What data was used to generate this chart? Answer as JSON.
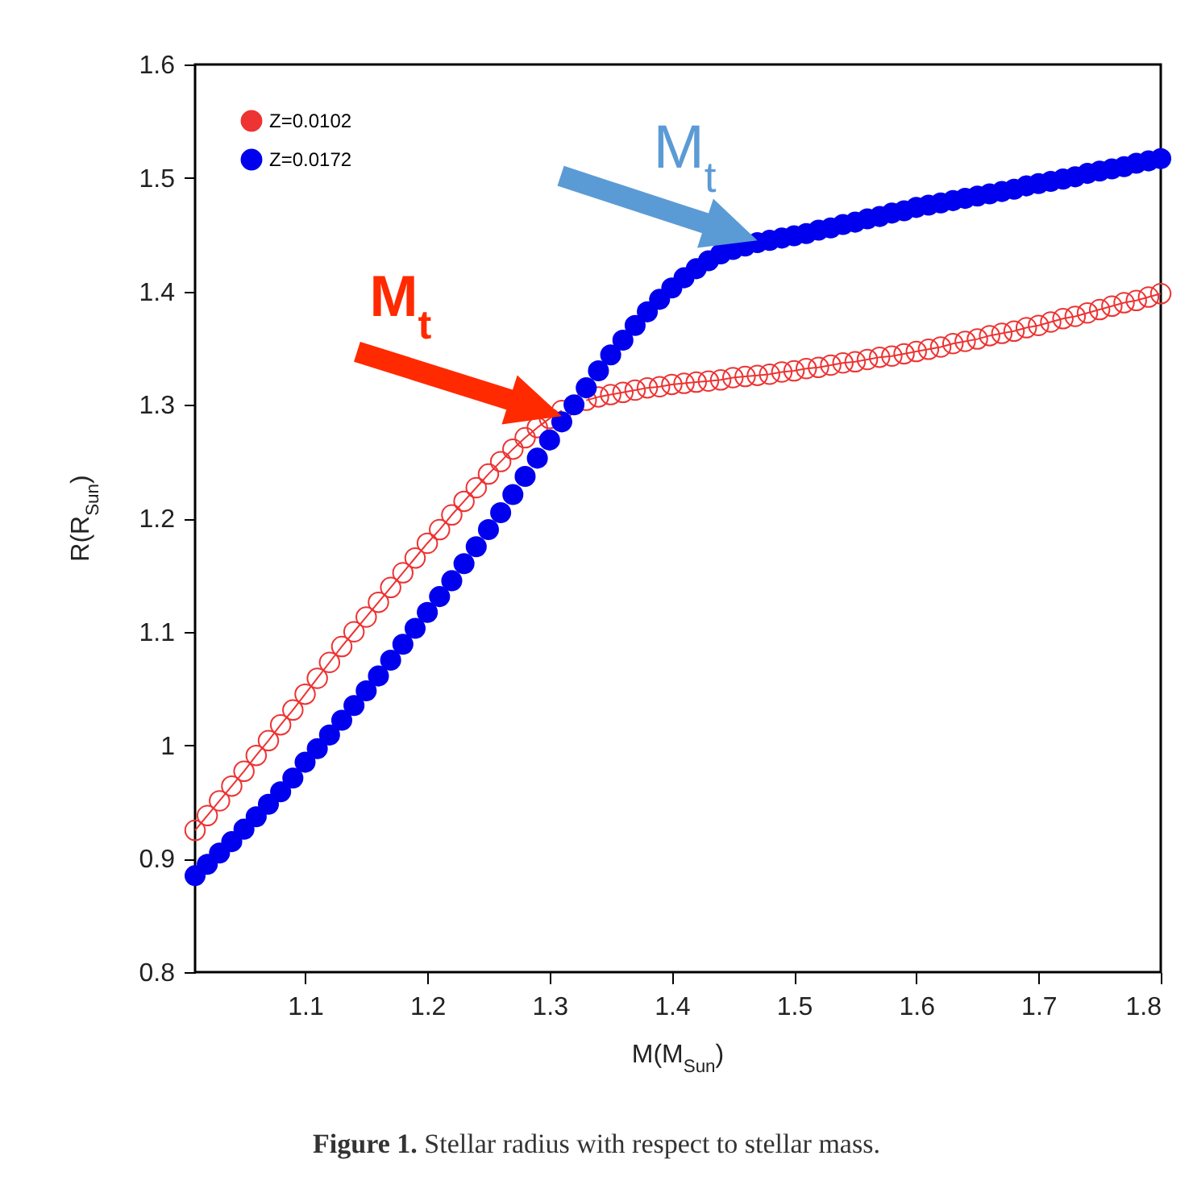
{
  "chart_data": {
    "type": "scatter",
    "xlabel": "M(M$_{Sun}$)",
    "ylabel": "R(R$_{Sun}$)",
    "xlim": [
      1.01,
      1.8
    ],
    "ylim": [
      0.8,
      1.6
    ],
    "xticks": [
      1.1,
      1.2,
      1.3,
      1.4,
      1.5,
      1.6,
      1.7,
      1.8
    ],
    "yticks": [
      0.8,
      0.9,
      1,
      1.1,
      1.2,
      1.3,
      1.4,
      1.5,
      1.6
    ],
    "grid": false,
    "legend": "top left",
    "marker": "circle",
    "x": [
      1.01,
      1.02,
      1.03,
      1.04,
      1.05,
      1.06,
      1.07,
      1.08,
      1.09,
      1.1,
      1.11,
      1.12,
      1.13,
      1.14,
      1.15,
      1.16,
      1.17,
      1.18,
      1.19,
      1.2,
      1.21,
      1.22,
      1.23,
      1.24,
      1.25,
      1.26,
      1.27,
      1.28,
      1.29,
      1.3,
      1.31,
      1.32,
      1.33,
      1.34,
      1.35,
      1.36,
      1.37,
      1.38,
      1.39,
      1.4,
      1.41,
      1.42,
      1.43,
      1.44,
      1.45,
      1.46,
      1.47,
      1.48,
      1.49,
      1.5,
      1.51,
      1.52,
      1.53,
      1.54,
      1.55,
      1.56,
      1.57,
      1.58,
      1.59,
      1.6,
      1.61,
      1.62,
      1.63,
      1.64,
      1.65,
      1.66,
      1.67,
      1.68,
      1.69,
      1.7,
      1.71,
      1.72,
      1.73,
      1.74,
      1.75,
      1.76,
      1.77,
      1.78,
      1.79,
      1.8
    ],
    "series": [
      {
        "name": "Z=0.0102",
        "type": "line",
        "color": "#ee3333",
        "values": [
          0.925,
          0.938,
          0.951,
          0.964,
          0.977,
          0.991,
          1.004,
          1.018,
          1.031,
          1.045,
          1.059,
          1.073,
          1.087,
          1.1,
          1.113,
          1.126,
          1.139,
          1.152,
          1.165,
          1.178,
          1.19,
          1.203,
          1.215,
          1.227,
          1.239,
          1.25,
          1.261,
          1.271,
          1.28,
          1.288,
          1.295,
          null,
          1.304,
          1.307,
          1.309,
          1.311,
          1.313,
          1.315,
          1.316,
          1.318,
          1.319,
          1.32,
          1.321,
          1.322,
          1.324,
          1.325,
          1.326,
          1.327,
          1.329,
          1.33,
          1.332,
          1.333,
          1.335,
          1.337,
          1.338,
          1.34,
          1.342,
          1.343,
          1.345,
          1.347,
          1.349,
          1.351,
          1.354,
          1.356,
          1.358,
          1.361,
          1.363,
          1.365,
          1.368,
          1.37,
          1.373,
          1.376,
          1.378,
          1.381,
          1.384,
          1.387,
          1.39,
          1.392,
          1.395,
          1.398
        ]
      },
      {
        "name": "Z=0.0172",
        "color": "#0000ee",
        "values": [
          0.885,
          0.895,
          0.905,
          0.915,
          0.926,
          0.937,
          0.948,
          0.959,
          0.971,
          0.985,
          0.997,
          1.009,
          1.022,
          1.035,
          1.048,
          1.061,
          1.075,
          1.089,
          1.103,
          1.117,
          1.131,
          1.145,
          1.16,
          1.175,
          1.19,
          1.205,
          1.221,
          1.237,
          1.253,
          1.269,
          1.285,
          1.3,
          1.315,
          1.33,
          1.344,
          1.357,
          1.37,
          1.382,
          1.393,
          1.403,
          1.412,
          1.42,
          1.427,
          1.433,
          1.437,
          1.44,
          1.443,
          1.445,
          1.447,
          1.449,
          1.451,
          1.454,
          1.456,
          1.459,
          1.461,
          1.464,
          1.466,
          1.469,
          1.471,
          1.474,
          1.476,
          1.478,
          1.48,
          1.482,
          1.484,
          1.486,
          1.488,
          1.49,
          1.493,
          1.495,
          1.497,
          1.499,
          1.501,
          1.504,
          1.506,
          1.508,
          1.51,
          1.513,
          1.515,
          1.517
        ]
      }
    ],
    "annotations": [
      {
        "text": "M$_{t}$",
        "x": 1.31,
        "y": 1.29
      },
      {
        "text": "M$_{t}$",
        "x": 1.47,
        "y": 1.445
      },
      "Figure 1. Stellar radius with respect to stellar mass."
    ]
  }
}
